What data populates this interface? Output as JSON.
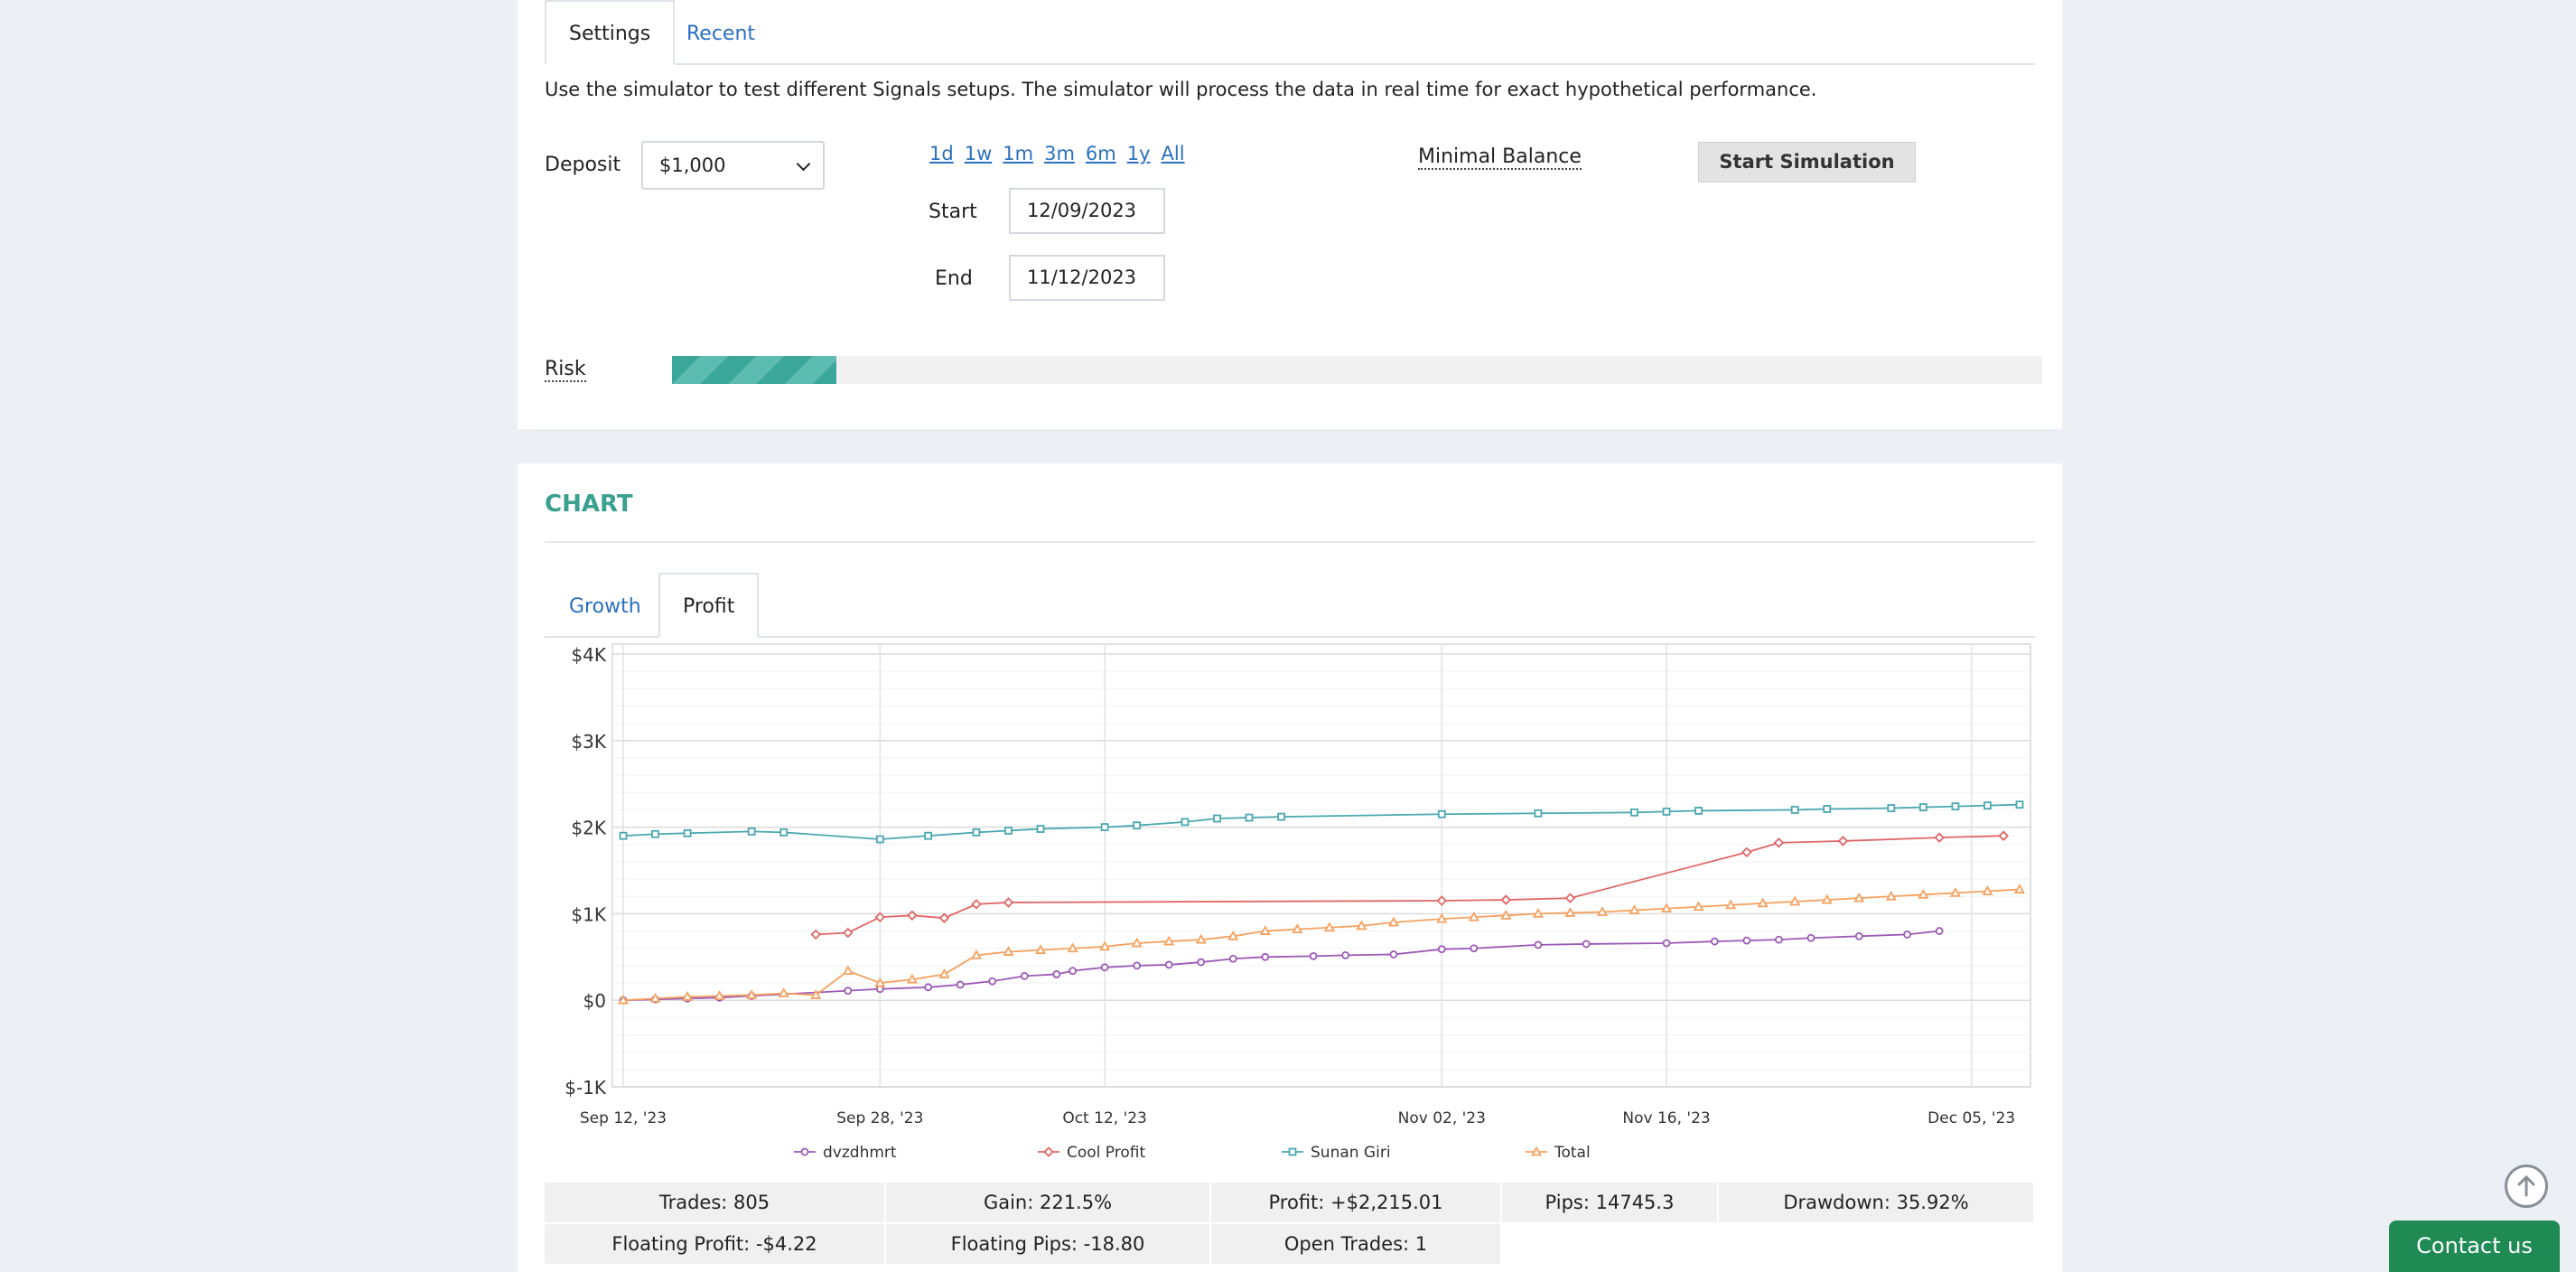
{
  "settings": {
    "tabs": [
      "Settings",
      "Recent"
    ],
    "description": "Use the simulator to test different Signals setups. The simulator will process the data in real time for exact hypothetical performance.",
    "deposit_label": "Deposit",
    "deposit_value": "$1,000",
    "periods": [
      "1d",
      "1w",
      "1m",
      "3m",
      "6m",
      "1y",
      "All"
    ],
    "start_label": "Start",
    "start_value": "12/09/2023",
    "end_label": "End",
    "end_value": "11/12/2023",
    "minimal_balance_label": "Minimal Balance",
    "start_button": "Start Simulation",
    "risk_label": "Risk",
    "risk_level": 0.12
  },
  "chart_section": {
    "title": "CHART",
    "tabs": [
      "Growth",
      "Profit"
    ]
  },
  "chart_data": {
    "type": "line",
    "ylim": [
      -1000,
      4000
    ],
    "yticks": [
      -1000,
      0,
      1000,
      2000,
      3000,
      4000
    ],
    "ytick_labels": [
      "$-1K",
      "$0",
      "$1K",
      "$2K",
      "$3K",
      "$4K"
    ],
    "xlim": [
      "2023-09-12",
      "2023-12-08"
    ],
    "xticks": [
      "2023-09-12",
      "2023-09-28",
      "2023-10-12",
      "2023-11-02",
      "2023-11-16",
      "2023-12-05"
    ],
    "xtick_labels": [
      "Sep 12, '23",
      "Sep 28, '23",
      "Oct 12, '23",
      "Nov 02, '23",
      "Nov 16, '23",
      "Dec 05, '23"
    ],
    "legend_position": "bottom",
    "series": [
      {
        "name": "dvzdhmrt",
        "color": "#9b59b6",
        "marker": "circle",
        "x": [
          "2023-09-12",
          "2023-09-14",
          "2023-09-16",
          "2023-09-18",
          "2023-09-20",
          "2023-09-26",
          "2023-09-28",
          "2023-10-01",
          "2023-10-03",
          "2023-10-05",
          "2023-10-07",
          "2023-10-09",
          "2023-10-10",
          "2023-10-12",
          "2023-10-14",
          "2023-10-16",
          "2023-10-18",
          "2023-10-20",
          "2023-10-22",
          "2023-10-25",
          "2023-10-27",
          "2023-10-30",
          "2023-11-02",
          "2023-11-04",
          "2023-11-08",
          "2023-11-11",
          "2023-11-16",
          "2023-11-19",
          "2023-11-21",
          "2023-11-23",
          "2023-11-25",
          "2023-11-28",
          "2023-12-01",
          "2023-12-03"
        ],
        "y": [
          0,
          10,
          20,
          30,
          50,
          110,
          130,
          150,
          180,
          220,
          280,
          300,
          340,
          380,
          400,
          410,
          440,
          480,
          500,
          510,
          520,
          530,
          590,
          600,
          640,
          650,
          660,
          680,
          690,
          700,
          720,
          740,
          760,
          800
        ]
      },
      {
        "name": "Cool Profit",
        "color": "#e06666",
        "marker": "diamond",
        "x": [
          "2023-09-24",
          "2023-09-26",
          "2023-09-28",
          "2023-09-30",
          "2023-10-02",
          "2023-10-04",
          "2023-10-06",
          "2023-11-02",
          "2023-11-06",
          "2023-11-10",
          "2023-11-21",
          "2023-11-23",
          "2023-11-27",
          "2023-12-03",
          "2023-12-07"
        ],
        "y": [
          760,
          780,
          960,
          980,
          950,
          1110,
          1130,
          1150,
          1160,
          1180,
          1710,
          1820,
          1840,
          1880,
          1900
        ]
      },
      {
        "name": "Sunan Giri",
        "color": "#4aa8b0",
        "marker": "square",
        "x": [
          "2023-09-12",
          "2023-09-14",
          "2023-09-16",
          "2023-09-20",
          "2023-09-22",
          "2023-09-28",
          "2023-10-01",
          "2023-10-04",
          "2023-10-06",
          "2023-10-08",
          "2023-10-12",
          "2023-10-14",
          "2023-10-17",
          "2023-10-19",
          "2023-10-21",
          "2023-10-23",
          "2023-11-02",
          "2023-11-08",
          "2023-11-14",
          "2023-11-16",
          "2023-11-18",
          "2023-11-24",
          "2023-11-26",
          "2023-11-30",
          "2023-12-02",
          "2023-12-04",
          "2023-12-06",
          "2023-12-08"
        ],
        "y": [
          1900,
          1920,
          1930,
          1950,
          1940,
          1860,
          1900,
          1940,
          1960,
          1980,
          2000,
          2020,
          2060,
          2100,
          2110,
          2120,
          2150,
          2160,
          2170,
          2180,
          2190,
          2200,
          2210,
          2220,
          2230,
          2240,
          2250,
          2260
        ]
      },
      {
        "name": "Total",
        "color": "#f6a15e",
        "marker": "triangle",
        "x": [
          "2023-09-12",
          "2023-09-14",
          "2023-09-16",
          "2023-09-18",
          "2023-09-20",
          "2023-09-22",
          "2023-09-24",
          "2023-09-26",
          "2023-09-28",
          "2023-09-30",
          "2023-10-02",
          "2023-10-04",
          "2023-10-06",
          "2023-10-08",
          "2023-10-10",
          "2023-10-12",
          "2023-10-14",
          "2023-10-16",
          "2023-10-18",
          "2023-10-20",
          "2023-10-22",
          "2023-10-24",
          "2023-10-26",
          "2023-10-28",
          "2023-10-30",
          "2023-11-02",
          "2023-11-04",
          "2023-11-06",
          "2023-11-08",
          "2023-11-10",
          "2023-11-12",
          "2023-11-14",
          "2023-11-16",
          "2023-11-18",
          "2023-11-20",
          "2023-11-22",
          "2023-11-24",
          "2023-11-26",
          "2023-11-28",
          "2023-11-30",
          "2023-12-02",
          "2023-12-04",
          "2023-12-06",
          "2023-12-08"
        ],
        "y": [
          0,
          20,
          40,
          50,
          60,
          80,
          60,
          340,
          200,
          240,
          300,
          520,
          560,
          580,
          600,
          620,
          660,
          680,
          700,
          740,
          800,
          820,
          840,
          860,
          900,
          940,
          960,
          980,
          1000,
          1010,
          1020,
          1040,
          1060,
          1080,
          1100,
          1120,
          1140,
          1160,
          1180,
          1200,
          1220,
          1240,
          1260,
          1280
        ]
      }
    ]
  },
  "stats": {
    "row1": [
      "Trades: 805",
      "Gain: 221.5%",
      "Profit: +$2,215.01",
      "Pips: 14745.3",
      "Drawdown: 35.92%"
    ],
    "row2": [
      "Floating Profit: -$4.22",
      "Floating Pips: -18.80",
      "Open Trades: 1"
    ]
  },
  "contact_button": "Contact us",
  "icons": {
    "scroll_top": "arrow-up-circle-icon",
    "select": "chevron-down-icon"
  }
}
